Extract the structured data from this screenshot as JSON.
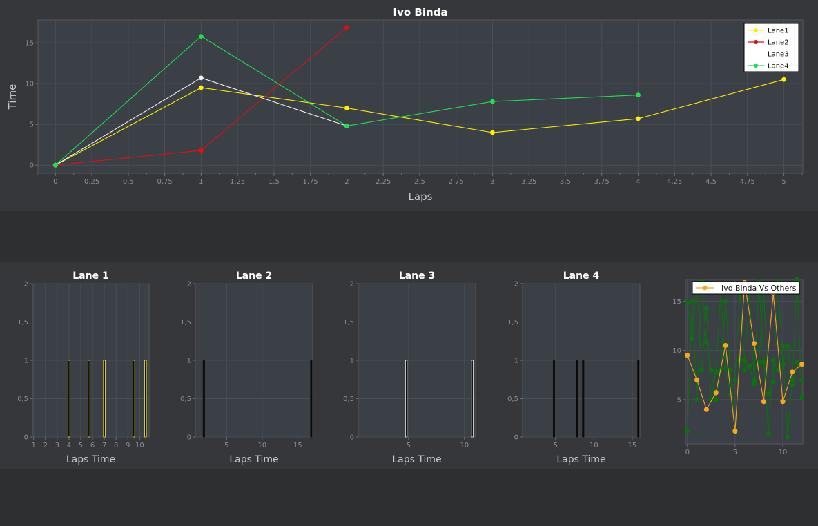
{
  "colors": {
    "page_bg": "#2e2f31",
    "panel_bg": "#35373a",
    "plot_bg": "#3b3f46",
    "grid": "#4a4e56",
    "axis_text": "#8a8e95",
    "title_text": "#ffffff",
    "label_text": "#c8cacd",
    "lane1": "#ffee00",
    "lane2": "#e01010",
    "lane3": "#f2f2f2",
    "lane4": "#1ee052",
    "compare_main": "#f5a623",
    "compare_others": "#0f6e12",
    "bar_fill": "#0a0a0a"
  },
  "chart_data": [
    {
      "id": "main",
      "type": "line",
      "title": "Ivo Binda",
      "xlabel": "Laps",
      "ylabel": "Time",
      "xlim": [
        -0.12,
        5.13
      ],
      "ylim": [
        -1,
        17.8
      ],
      "grid": true,
      "legend": "top-right",
      "xticks": [
        0,
        0.25,
        0.5,
        0.75,
        1,
        1.25,
        1.5,
        1.75,
        2,
        2.25,
        2.5,
        2.75,
        3,
        3.25,
        3.5,
        3.75,
        4,
        4.25,
        4.5,
        4.75,
        5
      ],
      "xtick_labels": [
        "0",
        "0,25",
        "0,5",
        "0,75",
        "1",
        "1,25",
        "1,5",
        "1,75",
        "2",
        "2,25",
        "2,5",
        "2,75",
        "3",
        "3,25",
        "3,5",
        "3,75",
        "4",
        "4,25",
        "4,5",
        "4,75",
        "5"
      ],
      "yticks": [
        0,
        5,
        10,
        15
      ],
      "ytick_labels": [
        "0",
        "5",
        "10",
        "15"
      ],
      "series": [
        {
          "name": "Lane1",
          "color": "#ffee00",
          "x": [
            0,
            1,
            2,
            3,
            4,
            5
          ],
          "y": [
            0,
            9.5,
            7.0,
            4.0,
            5.7,
            10.5
          ]
        },
        {
          "name": "Lane2",
          "color": "#e01010",
          "x": [
            0,
            1,
            2
          ],
          "y": [
            0,
            1.8,
            16.9
          ]
        },
        {
          "name": "Lane3",
          "color": "#f2f2f2",
          "x": [
            0,
            1,
            2
          ],
          "y": [
            0,
            10.7,
            4.8
          ]
        },
        {
          "name": "Lane4",
          "color": "#1ee052",
          "x": [
            0,
            1,
            2,
            3,
            4
          ],
          "y": [
            0,
            15.8,
            4.8,
            7.8,
            8.6
          ]
        }
      ]
    },
    {
      "id": "lane1",
      "type": "bar",
      "title": "Lane 1",
      "xlabel": "Laps Time",
      "xlim": [
        0.9,
        10.8
      ],
      "ylim": [
        0,
        2
      ],
      "xticks": [
        1,
        2,
        3,
        4,
        5,
        6,
        7,
        8,
        9,
        10
      ],
      "xtick_labels": [
        "1",
        "2",
        "3",
        "4",
        "5",
        "6",
        "7",
        "8",
        "9",
        "10"
      ],
      "yticks": [
        0,
        0.5,
        1,
        1.5,
        2
      ],
      "ytick_labels": [
        "0",
        "0,5",
        "1",
        "1,5",
        "2"
      ],
      "bar_width": 0.15,
      "bar_edge": "#ffee00",
      "x": [
        4.0,
        5.7,
        7.0,
        9.5,
        10.5
      ],
      "values": [
        1,
        1,
        1,
        1,
        1
      ]
    },
    {
      "id": "lane2",
      "type": "bar",
      "title": "Lane 2",
      "xlabel": "Laps Time",
      "xlim": [
        0.6,
        17.1
      ],
      "ylim": [
        0,
        2
      ],
      "xticks": [
        5,
        10,
        15
      ],
      "xtick_labels": [
        "5",
        "10",
        "15"
      ],
      "yticks": [
        0,
        0.5,
        1,
        1.5,
        2
      ],
      "ytick_labels": [
        "0",
        "0,5",
        "1",
        "1,5",
        "2"
      ],
      "bar_width": 0.15,
      "bar_edge": "#111111",
      "x": [
        1.8,
        16.9
      ],
      "values": [
        1,
        1
      ]
    },
    {
      "id": "lane3",
      "type": "bar",
      "title": "Lane 3",
      "xlabel": "Laps Time",
      "xlim": [
        0.5,
        11.0
      ],
      "ylim": [
        0,
        2
      ],
      "xticks": [
        5,
        10
      ],
      "xtick_labels": [
        "5",
        "10"
      ],
      "yticks": [
        0,
        0.5,
        1,
        1.5,
        2
      ],
      "ytick_labels": [
        "0",
        "0,5",
        "1",
        "1,5",
        "2"
      ],
      "bar_width": 0.12,
      "bar_edge": "#f2f2f2",
      "x": [
        4.8,
        10.7
      ],
      "values": [
        1,
        1
      ]
    },
    {
      "id": "lane4",
      "type": "bar",
      "title": "Lane 4",
      "xlabel": "Laps Time",
      "xlim": [
        0.7,
        16.0
      ],
      "ylim": [
        0,
        2
      ],
      "xticks": [
        5,
        10,
        15
      ],
      "xtick_labels": [
        "5",
        "10",
        "15"
      ],
      "yticks": [
        0,
        0.5,
        1,
        1.5,
        2
      ],
      "ytick_labels": [
        "0",
        "0,5",
        "1",
        "1,5",
        "2"
      ],
      "bar_width": 0.2,
      "bar_edge": "#111111",
      "x": [
        4.8,
        7.8,
        8.6,
        15.8
      ],
      "values": [
        1,
        1,
        1,
        1
      ]
    },
    {
      "id": "compare",
      "type": "line",
      "title": "",
      "xlabel": "",
      "ylabel": "",
      "legend": "top-right",
      "xlim": [
        -0.2,
        12.1
      ],
      "ylim": [
        0.5,
        17.2
      ],
      "xticks": [
        0,
        5,
        10
      ],
      "xtick_labels": [
        "0",
        "5",
        "10"
      ],
      "yticks": [
        5,
        10,
        15
      ],
      "ytick_labels": [
        "5",
        "10",
        "15"
      ],
      "series": [
        {
          "name": "",
          "color": "#0f6e12",
          "x": [
            0,
            0.5,
            1,
            1.5,
            2,
            2.5,
            3,
            3.5,
            4,
            4.5,
            5,
            5.5,
            6,
            6.5,
            7,
            7.5,
            8,
            8.5,
            9,
            9.5,
            10,
            10.5,
            11,
            11.5,
            12
          ],
          "y": [
            1.8,
            15.0,
            5.0,
            17.0,
            10.8,
            8.0,
            5.0,
            8.0,
            15.0,
            8.0,
            1.8,
            9.0,
            8.0,
            16.0,
            7.0,
            17.0,
            8.8,
            1.6,
            9.0,
            8.0,
            10.4,
            1.2,
            7.0,
            17.2,
            5.2
          ]
        },
        {
          "name": "",
          "color": "#0f6e12",
          "x": [
            0,
            0.5,
            1,
            1.5,
            2,
            2.5,
            3,
            3.5,
            4,
            4.5,
            5,
            5.5,
            6,
            6.5,
            7,
            7.5,
            8,
            8.5,
            9,
            9.5,
            10,
            10.5,
            11,
            11.5,
            12
          ],
          "y": [
            14.8,
            11.2,
            16.8,
            8.0,
            14.3,
            5.0,
            7.8,
            16.0,
            8.2,
            5.5,
            7.0,
            15.8,
            9.0,
            8.4,
            6.6,
            8.8,
            16.2,
            5.6,
            6.8,
            17.0,
            8.6,
            10.4,
            6.5,
            8.8,
            7.0
          ]
        },
        {
          "name": "Ivo Binda Vs Others",
          "color": "#f5a623",
          "x": [
            0,
            1,
            2,
            3,
            4,
            5,
            6,
            7,
            8,
            9,
            10,
            11,
            12
          ],
          "y": [
            9.5,
            7.0,
            4.0,
            5.7,
            10.5,
            1.8,
            16.9,
            10.7,
            4.8,
            15.8,
            4.8,
            7.8,
            8.6
          ]
        }
      ]
    }
  ]
}
